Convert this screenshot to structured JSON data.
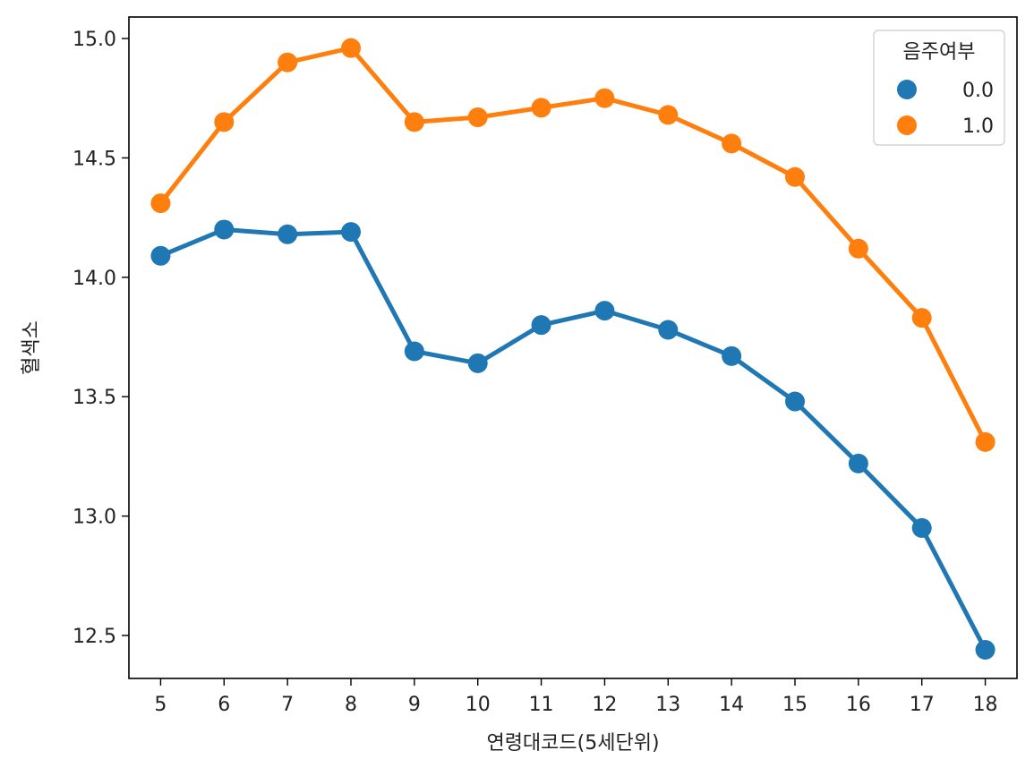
{
  "chart_data": {
    "type": "line",
    "title": "",
    "xlabel": "연령대코드(5세단위)",
    "ylabel": "혈색소",
    "categories": [
      "5",
      "6",
      "7",
      "8",
      "9",
      "10",
      "11",
      "12",
      "13",
      "14",
      "15",
      "16",
      "17",
      "18"
    ],
    "yticks": [
      "12.5",
      "13.0",
      "13.5",
      "14.0",
      "14.5",
      "15.0"
    ],
    "ylim": [
      12.32,
      15.09
    ],
    "grid": false,
    "legend": {
      "title": "음주여부",
      "position": "top-right"
    },
    "series": [
      {
        "name": "0.0",
        "color": "#1f77b4",
        "values": [
          14.09,
          14.2,
          14.18,
          14.19,
          13.69,
          13.64,
          13.8,
          13.86,
          13.78,
          13.67,
          13.48,
          13.22,
          12.95,
          12.44
        ]
      },
      {
        "name": "1.0",
        "color": "#ff7f0e",
        "values": [
          14.31,
          14.65,
          14.9,
          14.96,
          14.65,
          14.67,
          14.71,
          14.75,
          14.68,
          14.56,
          14.42,
          14.12,
          13.83,
          13.31
        ]
      }
    ]
  }
}
